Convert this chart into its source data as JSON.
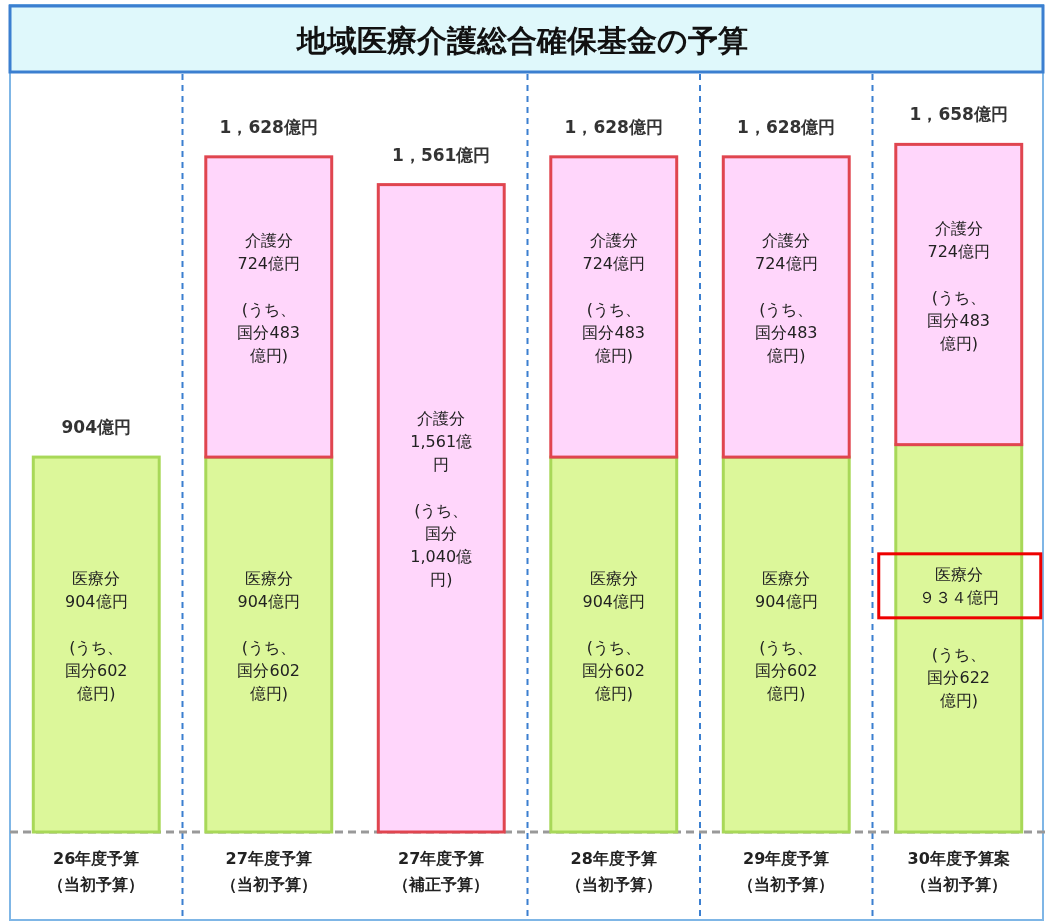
{
  "chart_data": {
    "type": "bar",
    "title": "地域医療介護総合確保基金の予算",
    "stacked": true,
    "categories": [
      "26年度予算（当初予算）",
      "27年度予算（当初予算）",
      "27年度予算（補正予算）",
      "28年度予算（当初予算）",
      "29年度予算（当初予算）",
      "30年度予算案（当初予算）"
    ],
    "series": [
      {
        "name": "医療分",
        "color": "#dcf79a",
        "values": [
          904,
          904,
          null,
          904,
          904,
          934
        ],
        "value_labels": [
          "904億円",
          "904億円",
          null,
          "904億円",
          "904億円",
          "９３４億円"
        ]
      },
      {
        "name": "介護分",
        "color": "#ffd6fb",
        "values": [
          null,
          724,
          1561,
          724,
          724,
          724
        ],
        "value_labels": [
          null,
          "724億円",
          "1,561億円",
          "724億円",
          "724億円",
          "724億円"
        ]
      }
    ],
    "totals": [
      "904億円",
      "1，628億円",
      "1，561億円",
      "1，628億円",
      "1，628億円",
      "1，658億円"
    ],
    "annotations": [
      "(うち、国分602億円)",
      "(うち、国分602億円)",
      "(うち、国分602億円)",
      "(うち、国分602億円)",
      "(うち、国分622億円)",
      "(うち、国分483億円)",
      "(うち、国分1,040億円)",
      "(うち、国分483億円)",
      "(うち、国分483億円)",
      "(うち、国分483億円)"
    ]
  }
}
